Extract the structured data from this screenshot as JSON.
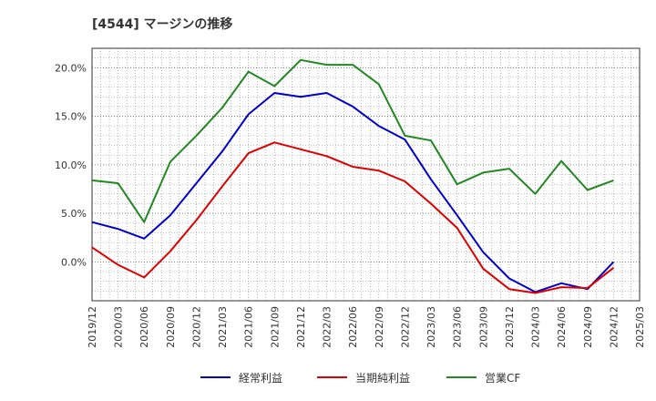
{
  "chart_data": {
    "type": "line",
    "title": "[4544]  マージンの推移",
    "x": [
      "2019/12",
      "2020/03",
      "2020/06",
      "2020/09",
      "2020/12",
      "2021/03",
      "2021/06",
      "2021/09",
      "2021/12",
      "2022/03",
      "2022/06",
      "2022/09",
      "2022/12",
      "2023/03",
      "2023/06",
      "2023/09",
      "2023/12",
      "2024/03",
      "2024/06",
      "2024/09",
      "2024/12"
    ],
    "x_ticks": [
      "2019/12",
      "2020/03",
      "2020/06",
      "2020/09",
      "2020/12",
      "2021/03",
      "2021/06",
      "2021/09",
      "2021/12",
      "2022/03",
      "2022/06",
      "2022/09",
      "2022/12",
      "2023/03",
      "2023/06",
      "2023/09",
      "2023/12",
      "2024/03",
      "2024/06",
      "2024/09",
      "2024/12",
      "2025/03"
    ],
    "y_ticks": [
      0,
      5,
      10,
      15,
      20
    ],
    "y_tick_labels": [
      "0.0%",
      "5.0%",
      "10.0%",
      "15.0%",
      "20.0%"
    ],
    "ylim": [
      -4.0,
      22.0
    ],
    "grid": true,
    "legend_position": "bottom",
    "series": [
      {
        "name": "経常利益",
        "color": "#0000cc",
        "values": [
          4.1,
          3.4,
          2.4,
          4.8,
          8.1,
          11.4,
          15.2,
          17.4,
          17.0,
          17.4,
          16.0,
          14.0,
          12.6,
          8.5,
          4.8,
          1.0,
          -1.7,
          -3.1,
          -2.2,
          -2.8,
          0.0
        ]
      },
      {
        "name": "当期純利益",
        "color": "#dd0000",
        "values": [
          1.5,
          -0.3,
          -1.6,
          1.1,
          4.3,
          7.8,
          11.2,
          12.3,
          11.6,
          10.9,
          9.8,
          9.4,
          8.3,
          6.0,
          3.5,
          -0.7,
          -2.8,
          -3.2,
          -2.6,
          -2.7,
          -0.6
        ]
      },
      {
        "name": "営業CF",
        "color": "#228822",
        "values": [
          8.4,
          8.1,
          4.1,
          10.3,
          13.0,
          15.9,
          19.6,
          18.1,
          20.8,
          20.3,
          20.3,
          18.3,
          13.0,
          12.5,
          8.0,
          9.2,
          9.6,
          7.0,
          10.4,
          7.4,
          8.4
        ]
      }
    ]
  }
}
